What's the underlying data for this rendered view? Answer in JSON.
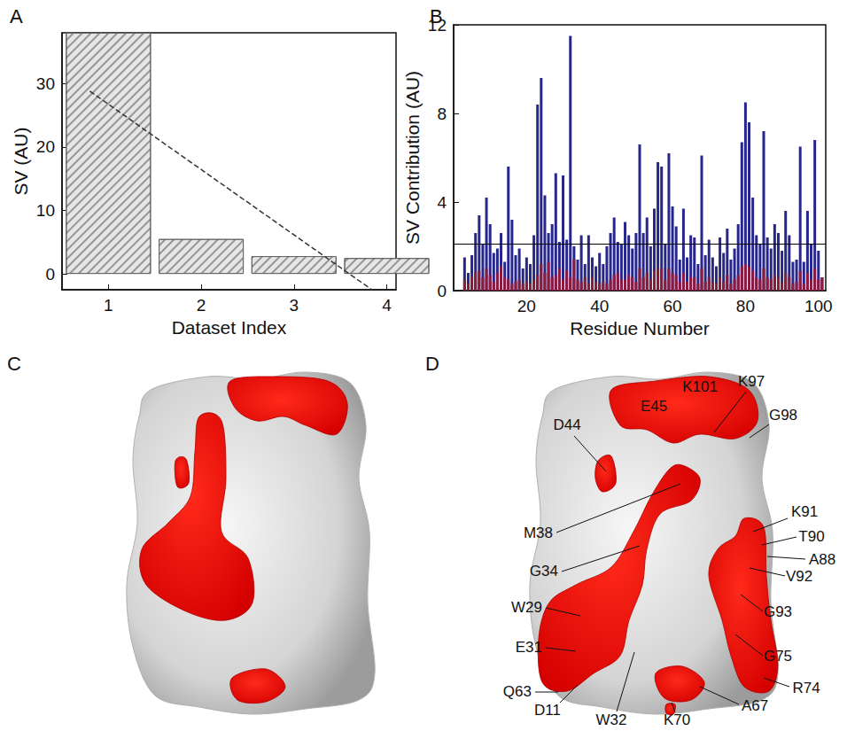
{
  "chart_data": [
    {
      "panel_label": "A",
      "type": "bar",
      "xlabel": "Dataset Index",
      "ylabel": "SV (AU)",
      "xlim": [
        0.5,
        4.1
      ],
      "xticks": [
        1,
        2,
        3,
        4
      ],
      "ylim": [
        -2.5,
        38
      ],
      "yticks": [
        0,
        10,
        20,
        30
      ],
      "series": [
        {
          "type": "bar",
          "color": "#e6e6e6",
          "x": [
            1,
            2,
            3,
            4
          ],
          "values": [
            38,
            5.5,
            2.8,
            2.5
          ]
        },
        {
          "type": "line",
          "color": "#333333",
          "line_style": "dashed",
          "x": [
            0.8,
            3.84
          ],
          "values": [
            28.8,
            -2.5
          ]
        }
      ]
    },
    {
      "panel_label": "B",
      "type": "bar",
      "xlabel": "Residue Number",
      "ylabel": "SV Contribution (AU)",
      "xlim": [
        0,
        102
      ],
      "xticks": [
        20,
        40,
        60,
        80,
        100
      ],
      "ylim": [
        0,
        12
      ],
      "yticks": [
        0,
        4,
        8,
        12
      ],
      "threshold": 2.1,
      "x": [
        3,
        4,
        5,
        6,
        7,
        8,
        9,
        10,
        11,
        12,
        13,
        14,
        15,
        16,
        17,
        18,
        19,
        20,
        21,
        22,
        23,
        24,
        25,
        26,
        27,
        28,
        29,
        30,
        31,
        32,
        33,
        34,
        35,
        36,
        37,
        38,
        39,
        40,
        41,
        42,
        43,
        44,
        45,
        46,
        47,
        48,
        49,
        50,
        51,
        52,
        53,
        54,
        55,
        56,
        57,
        58,
        59,
        60,
        61,
        62,
        63,
        64,
        65,
        66,
        67,
        68,
        69,
        70,
        71,
        72,
        73,
        74,
        75,
        76,
        77,
        78,
        79,
        80,
        81,
        82,
        83,
        84,
        85,
        86,
        87,
        88,
        89,
        90,
        91,
        92,
        93,
        94,
        95,
        96,
        97,
        98,
        99,
        100,
        101
      ],
      "series": [
        {
          "color": "#26268c",
          "values": [
            1.5,
            0.8,
            1.6,
            2.6,
            3.4,
            2.1,
            4.2,
            3.0,
            1.7,
            1.9,
            2.6,
            1.3,
            5.6,
            3.2,
            1.6,
            1.9,
            1.0,
            1.5,
            1.2,
            2.5,
            8.4,
            9.6,
            4.3,
            2.6,
            3.0,
            5.3,
            2.2,
            5.2,
            2.3,
            11.5,
            2.0,
            1.4,
            2.5,
            1.2,
            2.5,
            1.5,
            1.1,
            1.7,
            1.2,
            2.0,
            2.6,
            3.3,
            2.2,
            2.1,
            3.1,
            2.5,
            1.9,
            2.6,
            6.6,
            2.6,
            3.3,
            2.0,
            3.7,
            5.8,
            5.6,
            2.1,
            6.2,
            3.8,
            2.9,
            1.4,
            3.7,
            1.5,
            2.5,
            2.4,
            1.2,
            6.1,
            1.6,
            2.3,
            1.5,
            1.1,
            2.4,
            1.7,
            2.8,
            1.4,
            1.9,
            3.0,
            6.7,
            8.5,
            7.6,
            4.2,
            2.5,
            2.1,
            7.2,
            2.4,
            1.9,
            3.0,
            2.6,
            1.8,
            3.6,
            2.5,
            1.3,
            1.4,
            6.5,
            1.3,
            3.6,
            2.1,
            6.8,
            1.8,
            0.6
          ]
        },
        {
          "color": "#8c1a3c",
          "values": [
            0.5,
            0.3,
            0.6,
            0.8,
            0.9,
            0.6,
            1.0,
            0.7,
            0.4,
            0.8,
            1.1,
            0.6,
            0.5,
            0.3,
            0.4,
            0.5,
            0.3,
            0.4,
            0.3,
            0.5,
            0.7,
            1.2,
            0.8,
            1.3,
            0.6,
            0.7,
            1.0,
            0.5,
            0.9,
            0.6,
            1.4,
            0.5,
            0.4,
            0.6,
            0.3,
            0.6,
            0.4,
            0.3,
            0.4,
            0.3,
            0.5,
            0.7,
            0.8,
            0.5,
            0.5,
            0.7,
            0.6,
            0.4,
            1.0,
            0.6,
            0.8,
            0.5,
            0.9,
            1.0,
            1.0,
            0.5,
            1.0,
            0.8,
            0.7,
            0.4,
            0.8,
            0.4,
            0.6,
            0.6,
            0.3,
            1.0,
            0.4,
            0.6,
            0.4,
            0.3,
            0.6,
            0.4,
            0.7,
            0.3,
            0.5,
            0.7,
            1.1,
            1.2,
            1.1,
            0.9,
            0.6,
            0.5,
            1.0,
            0.6,
            0.5,
            0.7,
            0.6,
            0.4,
            0.8,
            0.6,
            0.3,
            0.4,
            0.9,
            0.3,
            0.8,
            0.5,
            1.0,
            0.5,
            0.6
          ]
        }
      ]
    }
  ],
  "panels": [
    {
      "panel_label": "C"
    },
    {
      "panel_label": "D",
      "labels": [
        "D44",
        "E45",
        "K101",
        "K97",
        "G98",
        "M38",
        "G34",
        "W29",
        "E31",
        "Q63",
        "D11",
        "W32",
        "K70",
        "A67",
        "G75",
        "R74",
        "G93",
        "V92",
        "A88",
        "T90",
        "K91"
      ]
    }
  ]
}
